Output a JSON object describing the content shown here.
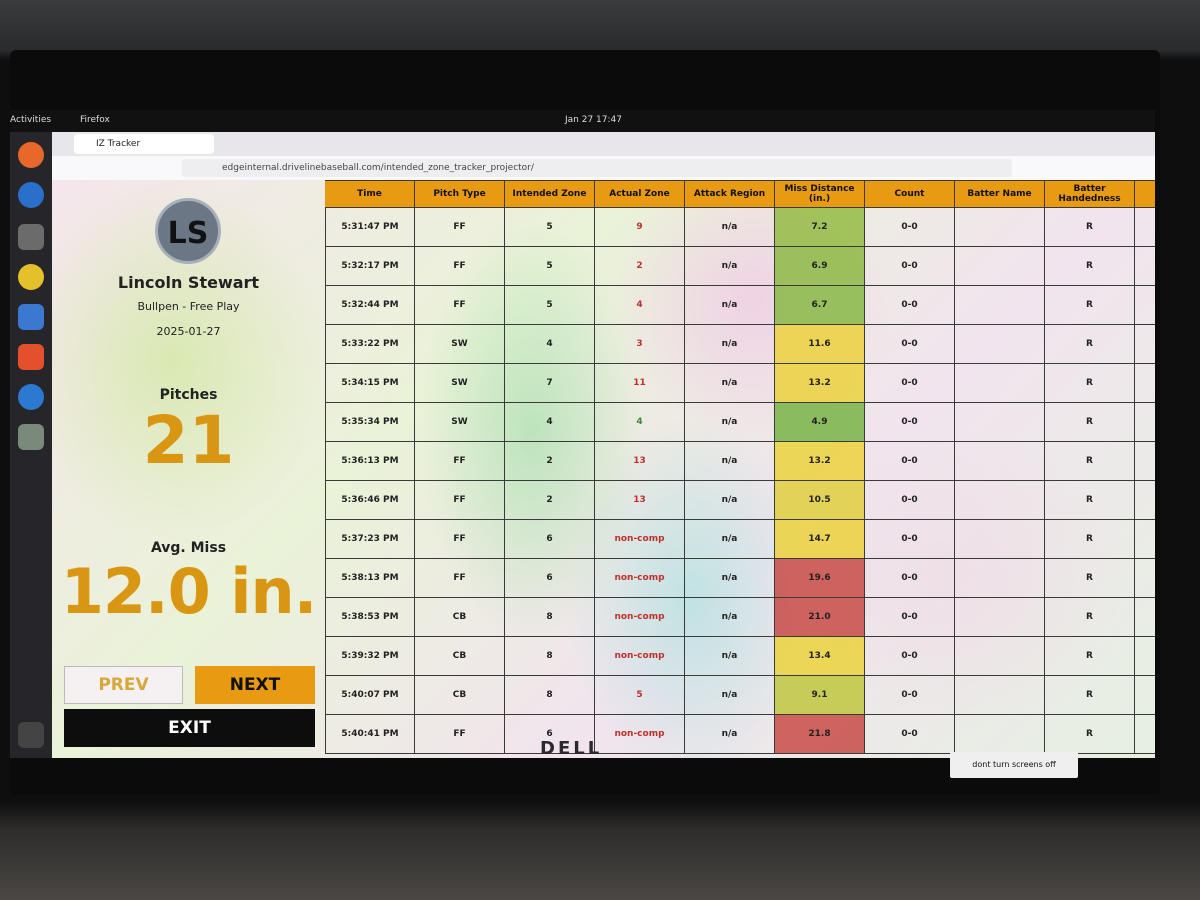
{
  "system": {
    "activities": "Activities",
    "app": "Firefox",
    "clock": "Jan 27  17:47"
  },
  "browser": {
    "tab_title": "IZ Tracker",
    "url": "edgeinternal.drivelinebaseball.com/intended_zone_tracker_projector/"
  },
  "profile": {
    "initials": "LS",
    "name": "Lincoln Stewart",
    "session": "Bullpen - Free Play",
    "date": "2025-01-27",
    "pitches_label": "Pitches",
    "pitches": 21,
    "avg_label": "Avg. Miss",
    "avg_miss": "12.0 in."
  },
  "buttons": {
    "prev": "PREV",
    "next": "NEXT",
    "exit": "EXIT"
  },
  "table": {
    "columns": [
      "Time",
      "Pitch Type",
      "Intended Zone",
      "Actual Zone",
      "Attack Region",
      "Miss Distance (in.)",
      "Count",
      "Batter Name",
      "Batter Handedness"
    ],
    "rows": [
      {
        "time": "5:31:47 PM",
        "pitch_type": "FF",
        "intended_zone": 5,
        "actual_zone": 9,
        "attack_region": "n/a",
        "miss": "7.2",
        "count": "0-0",
        "handedness": "R"
      },
      {
        "time": "5:32:17 PM",
        "pitch_type": "FF",
        "intended_zone": 5,
        "actual_zone": 2,
        "attack_region": "n/a",
        "miss": "6.9",
        "count": "0-0",
        "handedness": "R"
      },
      {
        "time": "5:32:44 PM",
        "pitch_type": "FF",
        "intended_zone": 5,
        "actual_zone": 4,
        "attack_region": "n/a",
        "miss": "6.7",
        "count": "0-0",
        "handedness": "R"
      },
      {
        "time": "5:33:22 PM",
        "pitch_type": "SW",
        "intended_zone": 4,
        "actual_zone": 3,
        "attack_region": "n/a",
        "miss": "11.6",
        "count": "0-0",
        "handedness": "R"
      },
      {
        "time": "5:34:15 PM",
        "pitch_type": "SW",
        "intended_zone": 7,
        "actual_zone": 11,
        "attack_region": "n/a",
        "miss": "13.2",
        "count": "0-0",
        "handedness": "R"
      },
      {
        "time": "5:35:34 PM",
        "pitch_type": "SW",
        "intended_zone": 4,
        "actual_zone": 4,
        "attack_region": "n/a",
        "miss": "4.9",
        "count": "0-0",
        "handedness": "R"
      },
      {
        "time": "5:36:13 PM",
        "pitch_type": "FF",
        "intended_zone": 2,
        "actual_zone": 13,
        "attack_region": "n/a",
        "miss": "13.2",
        "count": "0-0",
        "handedness": "R"
      },
      {
        "time": "5:36:46 PM",
        "pitch_type": "FF",
        "intended_zone": 2,
        "actual_zone": 13,
        "attack_region": "n/a",
        "miss": "10.5",
        "count": "0-0",
        "handedness": "R"
      },
      {
        "time": "5:37:23 PM",
        "pitch_type": "FF",
        "intended_zone": 6,
        "actual_zone": "non-comp",
        "attack_region": "n/a",
        "miss": "14.7",
        "count": "0-0",
        "handedness": "R"
      },
      {
        "time": "5:38:13 PM",
        "pitch_type": "FF",
        "intended_zone": 6,
        "actual_zone": "non-comp",
        "attack_region": "n/a",
        "miss": "19.6",
        "count": "0-0",
        "handedness": "R"
      },
      {
        "time": "5:38:53 PM",
        "pitch_type": "CB",
        "intended_zone": 8,
        "actual_zone": "non-comp",
        "attack_region": "n/a",
        "miss": "21.0",
        "count": "0-0",
        "handedness": "R"
      },
      {
        "time": "5:39:32 PM",
        "pitch_type": "CB",
        "intended_zone": 8,
        "actual_zone": "non-comp",
        "attack_region": "n/a",
        "miss": "13.4",
        "count": "0-0",
        "handedness": "R"
      },
      {
        "time": "5:40:07 PM",
        "pitch_type": "CB",
        "intended_zone": 8,
        "actual_zone": 5,
        "attack_region": "n/a",
        "miss": "9.1",
        "count": "0-0",
        "handedness": "R"
      },
      {
        "time": "5:40:41 PM",
        "pitch_type": "FF",
        "intended_zone": 6,
        "actual_zone": "non-comp",
        "attack_region": "n/a",
        "miss": "21.8",
        "count": "0-0",
        "handedness": "R"
      }
    ]
  },
  "sticker": "dont turn screens off"
}
